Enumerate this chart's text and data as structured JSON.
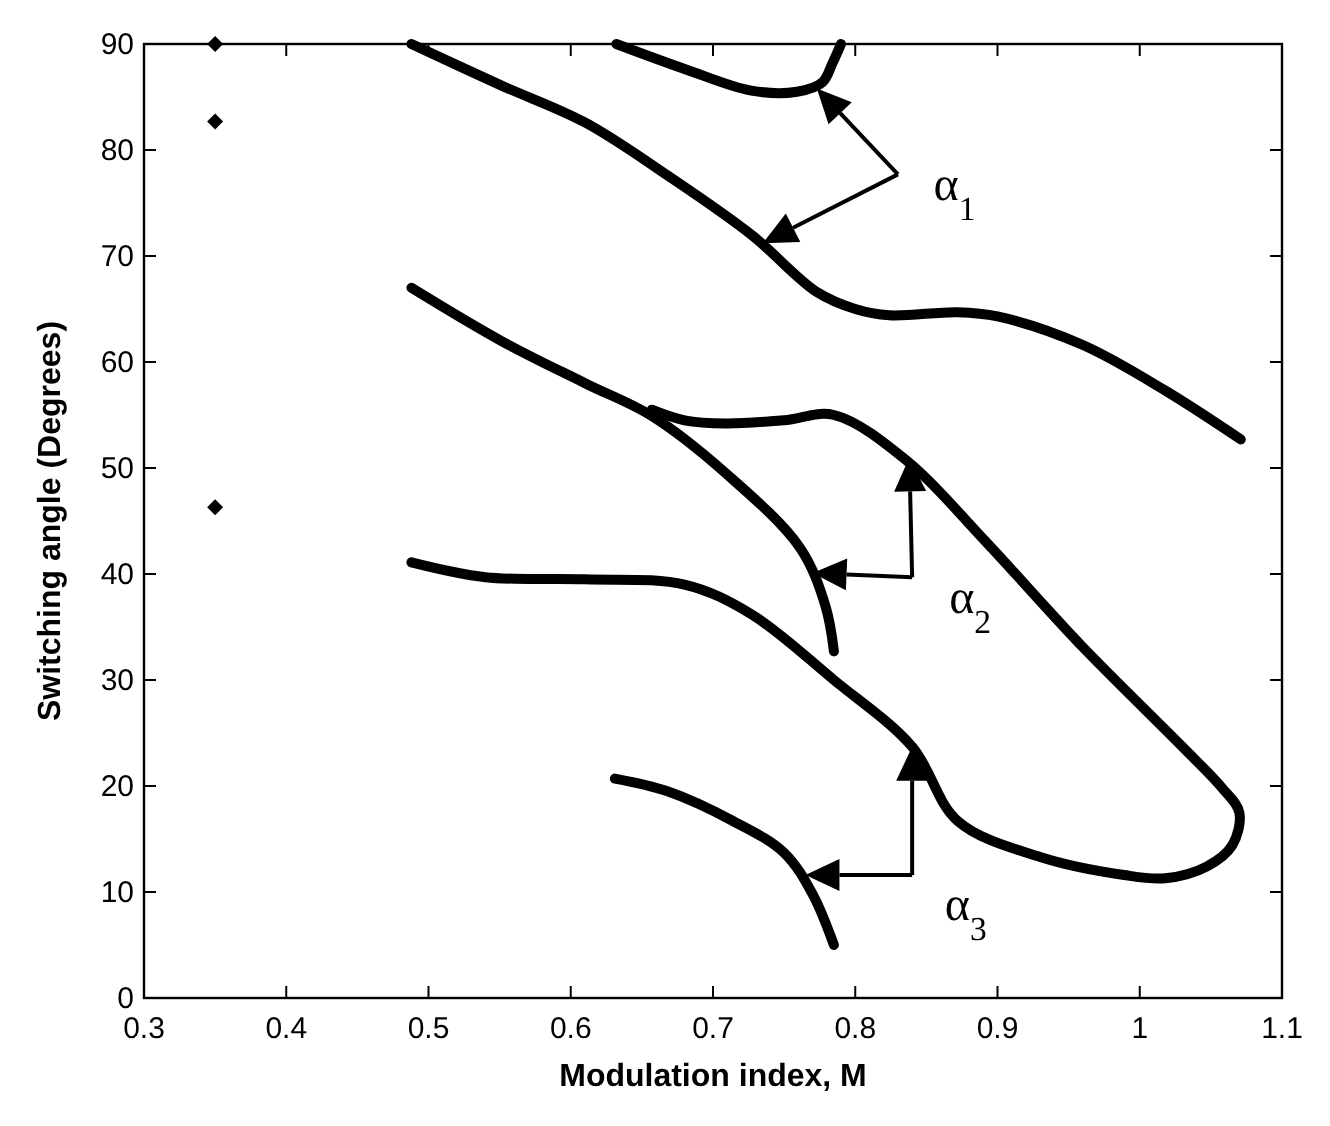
{
  "chart_data": {
    "type": "line",
    "xlabel": "Modulation index, M",
    "ylabel": "Switching angle (Degrees)",
    "xlim": [
      0.3,
      1.1
    ],
    "xticks": [
      0.3,
      0.4,
      0.5,
      0.6,
      0.7,
      0.8,
      0.9,
      1,
      1.1
    ],
    "ylim": [
      0,
      90
    ],
    "yticks": [
      0,
      10,
      20,
      30,
      40,
      50,
      60,
      70,
      80,
      90
    ],
    "grid": false,
    "line_style": "solid",
    "marker": "none",
    "series": [
      {
        "color": "#000000",
        "x": [
          0.632,
          0.681,
          0.727,
          0.759,
          0.777,
          0.784,
          0.79
        ],
        "values": [
          90,
          87.6,
          85.6,
          85.5,
          86.4,
          88.2,
          90
        ]
      },
      {
        "color": "#000000",
        "x": [
          0.488,
          0.551,
          0.61,
          0.668,
          0.727,
          0.773,
          0.8,
          0.824,
          0.872,
          0.9,
          0.96,
          1.018,
          1.071
        ],
        "values": [
          90,
          86.1,
          82.6,
          77.6,
          72,
          66.6,
          65,
          64.4,
          64.7,
          64.3,
          61.6,
          57.3,
          52.7
        ]
      },
      {
        "color": "#000000",
        "x": [
          0.488,
          0.551,
          0.61,
          0.657,
          0.709,
          0.761,
          0.779,
          0.785
        ],
        "values": [
          67,
          62,
          58,
          54.9,
          49.5,
          42.5,
          37,
          32.7
        ]
      },
      {
        "color": "#000000",
        "x": [
          0.657,
          0.68,
          0.709,
          0.75,
          0.785,
          0.837,
          0.89,
          0.96,
          1.03,
          1.058,
          1.07,
          1.065,
          1.047,
          1.018,
          0.989,
          0.93,
          0.872,
          0.84,
          0.785,
          0.727,
          0.68,
          0.61,
          0.54,
          0.488
        ],
        "values": [
          55.5,
          54.5,
          54.2,
          54.5,
          55,
          50.6,
          43.3,
          33.1,
          23.7,
          19.8,
          17.5,
          14.4,
          12.4,
          11.3,
          11.6,
          13.3,
          16.7,
          23.7,
          30,
          36.2,
          39,
          39.5,
          39.7,
          41.1
        ]
      },
      {
        "color": "#000000",
        "x": [
          0.631,
          0.668,
          0.714,
          0.75,
          0.77,
          0.785
        ],
        "values": [
          20.7,
          19.5,
          16.7,
          13.7,
          9.8,
          5
        ]
      },
      {
        "type": "scatter",
        "marker": "diamond",
        "color": "#000000",
        "x": [
          0.35,
          0.35,
          0.35
        ],
        "values": [
          90,
          82.7,
          46.3
        ]
      }
    ],
    "annotations": [
      "α$_{1}$",
      "α$_{2}$",
      "α$_{3}$"
    ]
  }
}
